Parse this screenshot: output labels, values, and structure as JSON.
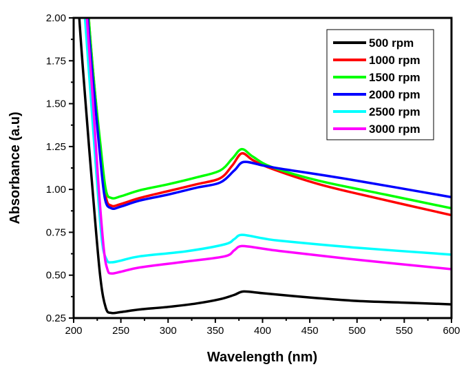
{
  "chart_data": {
    "type": "line",
    "title": "",
    "xlabel": "Wavelength (nm)",
    "ylabel": "Absorbance (a.u)",
    "xlim": [
      200,
      600
    ],
    "ylim": [
      0.25,
      2.0
    ],
    "xticks": [
      200,
      250,
      300,
      350,
      400,
      450,
      500,
      550,
      600
    ],
    "xtick_labels": [
      "200",
      "250",
      "300",
      "350",
      "400",
      "450",
      "500",
      "550",
      "600"
    ],
    "yticks": [
      0.25,
      0.5,
      0.75,
      1.0,
      1.25,
      1.5,
      1.75,
      2.0
    ],
    "ytick_labels": [
      "0.25",
      "0.50",
      "0.75",
      "1.00",
      "1.25",
      "1.50",
      "1.75",
      "2.00"
    ],
    "grid": false,
    "legend_position": "top-right",
    "series": [
      {
        "name": "500 rpm",
        "color": "#000000",
        "x": [
          200,
          206,
          212,
          220,
          228,
          234,
          240,
          250,
          270,
          300,
          330,
          355,
          370,
          380,
          400,
          450,
          500,
          550,
          600
        ],
        "y": [
          2.6,
          2.0,
          1.55,
          1.0,
          0.5,
          0.31,
          0.28,
          0.285,
          0.3,
          0.315,
          0.335,
          0.36,
          0.385,
          0.405,
          0.395,
          0.37,
          0.35,
          0.34,
          0.33
        ]
      },
      {
        "name": "1000 rpm",
        "color": "#ff0000",
        "x": [
          212,
          216,
          222,
          228,
          234,
          240,
          250,
          270,
          300,
          330,
          355,
          368,
          378,
          390,
          410,
          460,
          520,
          600
        ],
        "y": [
          2.4,
          2.0,
          1.6,
          1.25,
          0.96,
          0.905,
          0.915,
          0.95,
          0.99,
          1.03,
          1.065,
          1.14,
          1.21,
          1.17,
          1.12,
          1.03,
          0.95,
          0.85
        ]
      },
      {
        "name": "1500 rpm",
        "color": "#00ff00",
        "x": [
          212,
          216,
          222,
          228,
          234,
          240,
          250,
          270,
          300,
          330,
          355,
          368,
          378,
          390,
          410,
          460,
          530,
          600
        ],
        "y": [
          2.4,
          2.0,
          1.6,
          1.28,
          1.0,
          0.95,
          0.96,
          0.995,
          1.03,
          1.07,
          1.11,
          1.18,
          1.235,
          1.19,
          1.13,
          1.05,
          0.97,
          0.89
        ]
      },
      {
        "name": "2000 rpm",
        "color": "#0000ff",
        "x": [
          211,
          215,
          221,
          227,
          233,
          240,
          250,
          270,
          300,
          330,
          355,
          370,
          380,
          400,
          420,
          490,
          600
        ],
        "y": [
          2.4,
          2.0,
          1.6,
          1.25,
          0.95,
          0.89,
          0.9,
          0.935,
          0.97,
          1.01,
          1.04,
          1.11,
          1.16,
          1.14,
          1.12,
          1.06,
          0.955
        ]
      },
      {
        "name": "2500 rpm",
        "color": "#00ffff",
        "x": [
          208,
          212,
          218,
          224,
          230,
          235,
          240,
          250,
          270,
          320,
          360,
          370,
          378,
          400,
          420,
          500,
          600
        ],
        "y": [
          2.4,
          2.0,
          1.55,
          1.1,
          0.7,
          0.59,
          0.575,
          0.585,
          0.61,
          0.64,
          0.68,
          0.71,
          0.735,
          0.715,
          0.7,
          0.66,
          0.62
        ]
      },
      {
        "name": "3000 rpm",
        "color": "#ff00ff",
        "x": [
          210,
          214,
          220,
          226,
          232,
          236,
          240,
          250,
          270,
          320,
          360,
          370,
          378,
          400,
          420,
          500,
          600
        ],
        "y": [
          2.4,
          2.0,
          1.55,
          1.05,
          0.65,
          0.53,
          0.51,
          0.52,
          0.545,
          0.58,
          0.61,
          0.645,
          0.67,
          0.655,
          0.64,
          0.59,
          0.535
        ]
      }
    ]
  }
}
